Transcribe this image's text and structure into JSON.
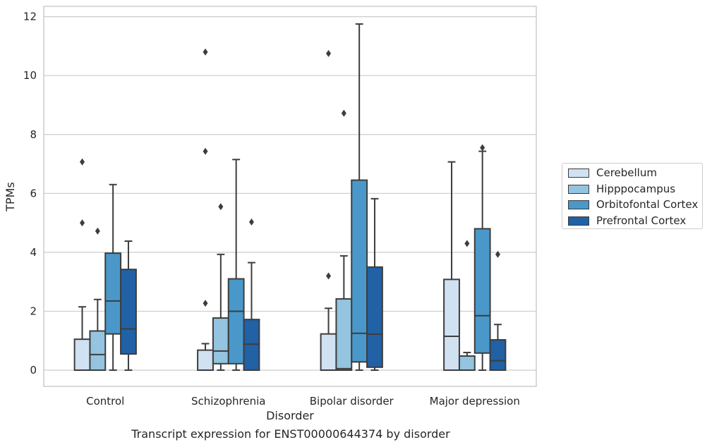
{
  "caption": "Transcript expression for ENST00000644374 by disorder",
  "chart_data": {
    "type": "box",
    "xlabel": "Disorder",
    "ylabel": "TPMs",
    "ylim": [
      -0.55,
      12.35
    ],
    "yticks": [
      0,
      2,
      4,
      6,
      8,
      10,
      12
    ],
    "grid": true,
    "legend_position": "right",
    "categories": [
      "Control",
      "Schizophrenia",
      "Bipolar disorder",
      "Major depression"
    ],
    "series": [
      {
        "name": "Cerebellum",
        "color": "#d0e1f2",
        "boxes": [
          {
            "whislo": 0,
            "q1": 0,
            "med": 0,
            "q3": 1.05,
            "whishi": 2.15,
            "fliers": [
              5.0,
              7.07
            ]
          },
          {
            "whislo": 0,
            "q1": 0,
            "med": 0,
            "q3": 0.68,
            "whishi": 0.9,
            "fliers": [
              2.27,
              7.43,
              10.8
            ]
          },
          {
            "whislo": 0,
            "q1": 0,
            "med": 0,
            "q3": 1.23,
            "whishi": 2.1,
            "fliers": [
              3.2,
              10.75
            ]
          },
          {
            "whislo": 0,
            "q1": 0,
            "med": 1.15,
            "q3": 3.08,
            "whishi": 7.07,
            "fliers": []
          }
        ]
      },
      {
        "name": "Hipppocampus",
        "color": "#94c4df",
        "boxes": [
          {
            "whislo": 0,
            "q1": 0,
            "med": 0.53,
            "q3": 1.33,
            "whishi": 2.4,
            "fliers": [
              4.72
            ]
          },
          {
            "whislo": 0,
            "q1": 0.22,
            "med": 0.65,
            "q3": 1.77,
            "whishi": 3.93,
            "fliers": [
              5.55
            ]
          },
          {
            "whislo": 0,
            "q1": 0,
            "med": 0.05,
            "q3": 2.42,
            "whishi": 3.88,
            "fliers": [
              8.72
            ]
          },
          {
            "whislo": 0,
            "q1": 0,
            "med": 0,
            "q3": 0.48,
            "whishi": 0.6,
            "fliers": [
              4.3
            ]
          }
        ]
      },
      {
        "name": "Orbitofontal Cortex",
        "color": "#4a98c9",
        "boxes": [
          {
            "whislo": 0,
            "q1": 1.23,
            "med": 2.35,
            "q3": 3.97,
            "whishi": 6.3,
            "fliers": []
          },
          {
            "whislo": 0,
            "q1": 0.22,
            "med": 2.0,
            "q3": 3.1,
            "whishi": 7.15,
            "fliers": []
          },
          {
            "whislo": 0,
            "q1": 0.28,
            "med": 1.25,
            "q3": 6.45,
            "whishi": 11.75,
            "fliers": []
          },
          {
            "whislo": 0,
            "q1": 0.58,
            "med": 1.85,
            "q3": 4.8,
            "whishi": 7.43,
            "fliers": [
              7.55
            ]
          }
        ]
      },
      {
        "name": "Prefrontal Cortex",
        "color": "#2161a5",
        "boxes": [
          {
            "whislo": 0,
            "q1": 0.55,
            "med": 1.4,
            "q3": 3.42,
            "whishi": 4.38,
            "fliers": []
          },
          {
            "whislo": 0,
            "q1": 0,
            "med": 0.88,
            "q3": 1.72,
            "whishi": 3.65,
            "fliers": [
              5.03
            ]
          },
          {
            "whislo": 0,
            "q1": 0.1,
            "med": 1.22,
            "q3": 3.5,
            "whishi": 5.82,
            "fliers": []
          },
          {
            "whislo": 0,
            "q1": 0,
            "med": 0.32,
            "q3": 1.03,
            "whishi": 1.55,
            "fliers": [
              3.93
            ]
          }
        ]
      }
    ]
  }
}
